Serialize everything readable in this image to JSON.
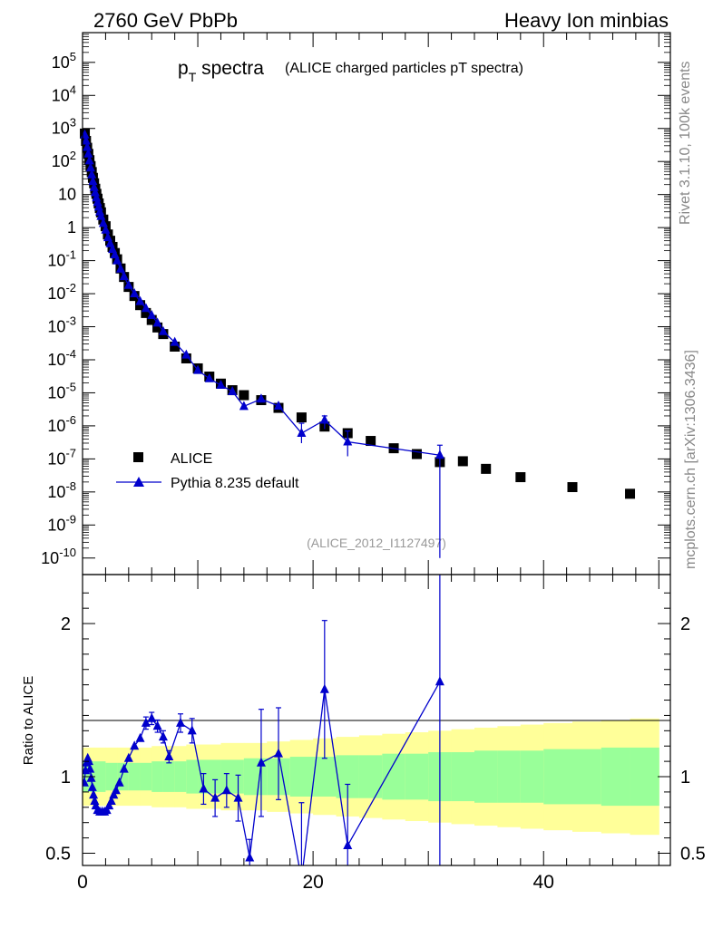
{
  "header": {
    "left": "2760 GeV PbPb",
    "right": "Heavy Ion minbias"
  },
  "title": {
    "main": "p",
    "sub": "T",
    "main2": " spectra",
    "detail": "(ALICE charged particles pT spectra)"
  },
  "side_labels": {
    "rivet": "Rivet 3.1.10,  100k events",
    "mcplots": "mcplots.cern.ch [arXiv:1306.3436]"
  },
  "analysis_id": "(ALICE_2012_I1127497)",
  "colors": {
    "data": "#000000",
    "mc": "#0000cc",
    "band_inner": "#99ff99",
    "band_outer": "#ffff99"
  },
  "chart_data": {
    "type": "scatter",
    "x_range": [
      0,
      51
    ],
    "top": {
      "scale": "log",
      "y_range_log10": [
        -10.5,
        5.9
      ],
      "y_tick_labels": [
        "10^-10",
        "10^-9",
        "10^-8",
        "10^-7",
        "10^-6",
        "10^-5",
        "10^-4",
        "10^-3",
        "10^-2",
        "10^-1",
        "1",
        "10",
        "10^2",
        "10^3",
        "10^4",
        "10^5"
      ],
      "legend": [
        {
          "name": "ALICE",
          "marker": "square"
        },
        {
          "name": "Pythia 8.235 default",
          "marker": "triangle-line"
        }
      ],
      "alice": [
        [
          0.2,
          700
        ],
        [
          0.3,
          420
        ],
        [
          0.4,
          260
        ],
        [
          0.5,
          170
        ],
        [
          0.6,
          110
        ],
        [
          0.7,
          72
        ],
        [
          0.8,
          48
        ],
        [
          0.9,
          32
        ],
        [
          1.0,
          22
        ],
        [
          1.1,
          15
        ],
        [
          1.2,
          10.5
        ],
        [
          1.3,
          7.5
        ],
        [
          1.4,
          5.4
        ],
        [
          1.5,
          3.9
        ],
        [
          1.6,
          2.9
        ],
        [
          1.8,
          1.75
        ],
        [
          2.0,
          1.1
        ],
        [
          2.2,
          0.62
        ],
        [
          2.4,
          0.4
        ],
        [
          2.6,
          0.26
        ],
        [
          2.8,
          0.17
        ],
        [
          3.0,
          0.11
        ],
        [
          3.3,
          0.058
        ],
        [
          3.6,
          0.032
        ],
        [
          4.0,
          0.016
        ],
        [
          4.5,
          0.0085
        ],
        [
          5.0,
          0.0045
        ],
        [
          5.5,
          0.0026
        ],
        [
          6.0,
          0.0016
        ],
        [
          6.5,
          0.00095
        ],
        [
          7.0,
          0.0006
        ],
        [
          8.0,
          0.00025
        ],
        [
          9.0,
          0.00011
        ],
        [
          10.0,
          5.5e-05
        ],
        [
          11.0,
          3.1e-05
        ],
        [
          12.0,
          1.9e-05
        ],
        [
          13.0,
          1.2e-05
        ],
        [
          14.0,
          8.5e-06
        ],
        [
          15.5,
          6e-06
        ],
        [
          17.0,
          3.5e-06
        ],
        [
          19.0,
          1.8e-06
        ],
        [
          21.0,
          9.5e-07
        ],
        [
          23.0,
          6e-07
        ],
        [
          25.0,
          3.5e-07
        ],
        [
          27.0,
          2.1e-07
        ],
        [
          29.0,
          1.4e-07
        ],
        [
          31.0,
          8e-08
        ],
        [
          33.0,
          8.5e-08
        ],
        [
          35.0,
          5e-08
        ],
        [
          38.0,
          2.8e-08
        ],
        [
          42.5,
          1.4e-08
        ],
        [
          47.5,
          8.8e-09
        ]
      ],
      "pythia": [
        [
          0.2,
          640
        ],
        [
          0.3,
          420
        ],
        [
          0.4,
          270
        ],
        [
          0.5,
          170
        ],
        [
          0.6,
          105
        ],
        [
          0.7,
          64
        ],
        [
          0.8,
          40
        ],
        [
          0.9,
          25
        ],
        [
          1.0,
          16.5
        ],
        [
          1.1,
          11.5
        ],
        [
          1.2,
          8
        ],
        [
          1.3,
          5.8
        ],
        [
          1.4,
          4.2
        ],
        [
          1.5,
          3.0
        ],
        [
          1.6,
          2.2
        ],
        [
          1.8,
          1.35
        ],
        [
          2.0,
          0.85
        ],
        [
          2.2,
          0.5
        ],
        [
          2.4,
          0.33
        ],
        [
          2.6,
          0.22
        ],
        [
          2.8,
          0.15
        ],
        [
          3.0,
          0.1
        ],
        [
          3.3,
          0.056
        ],
        [
          3.6,
          0.033
        ],
        [
          4.0,
          0.018
        ],
        [
          4.5,
          0.01
        ],
        [
          5.0,
          0.0058
        ],
        [
          5.5,
          0.0036
        ],
        [
          6.0,
          0.0022
        ],
        [
          6.5,
          0.0013
        ],
        [
          7.0,
          0.00072
        ],
        [
          8.0,
          0.00034
        ],
        [
          9.0,
          0.00014
        ],
        [
          10.0,
          4.8e-05
        ],
        [
          11.0,
          2.7e-05
        ],
        [
          12.0,
          1.7e-05
        ],
        [
          13.0,
          1.1e-05
        ],
        [
          14.0,
          3.9e-06
        ],
        [
          15.5,
          6.5e-06
        ],
        [
          17.0,
          4e-06
        ],
        [
          19.0,
          6e-07
        ],
        [
          21.0,
          1.5e-06
        ],
        [
          23.0,
          3.3e-07
        ],
        [
          31.0,
          1.3e-07
        ]
      ]
    },
    "ratio": {
      "ylabel": "Ratio to ALICE",
      "y_range": [
        0.42,
        2.32
      ],
      "y_tick_labels": [
        "0.5",
        "1",
        "2"
      ],
      "x_tick_labels": [
        "0",
        "20",
        "40"
      ],
      "band_edges": [
        0,
        1,
        2,
        3,
        4,
        5,
        6,
        7,
        8,
        9,
        10,
        12,
        14,
        16,
        18,
        20,
        22,
        24,
        26,
        28,
        30,
        32,
        34,
        36,
        38,
        40,
        42.5,
        45,
        47.5,
        50
      ],
      "band_outer": [
        0.19,
        0.19,
        0.19,
        0.19,
        0.19,
        0.19,
        0.2,
        0.2,
        0.2,
        0.21,
        0.21,
        0.22,
        0.22,
        0.23,
        0.24,
        0.25,
        0.26,
        0.27,
        0.28,
        0.29,
        0.3,
        0.31,
        0.32,
        0.33,
        0.34,
        0.35,
        0.36,
        0.37,
        0.38
      ],
      "band_inner": [
        0.1,
        0.1,
        0.09,
        0.09,
        0.09,
        0.09,
        0.1,
        0.1,
        0.1,
        0.11,
        0.11,
        0.11,
        0.12,
        0.12,
        0.13,
        0.13,
        0.14,
        0.14,
        0.15,
        0.15,
        0.16,
        0.16,
        0.17,
        0.17,
        0.17,
        0.18,
        0.18,
        0.19,
        0.19
      ],
      "pythia": [
        [
          0.15,
          0.96
        ],
        [
          0.25,
          1.04
        ],
        [
          0.35,
          1.09
        ],
        [
          0.45,
          1.12
        ],
        [
          0.55,
          1.1
        ],
        [
          0.65,
          1.05
        ],
        [
          0.75,
          0.99
        ],
        [
          0.85,
          0.93
        ],
        [
          0.95,
          0.88
        ],
        [
          1.05,
          0.84
        ],
        [
          1.15,
          0.81
        ],
        [
          1.3,
          0.78
        ],
        [
          1.5,
          0.77
        ],
        [
          1.7,
          0.77
        ],
        [
          1.9,
          0.77
        ],
        [
          2.1,
          0.78
        ],
        [
          2.3,
          0.81
        ],
        [
          2.5,
          0.84
        ],
        [
          2.7,
          0.88
        ],
        [
          2.9,
          0.91
        ],
        [
          3.2,
          0.96
        ],
        [
          3.6,
          1.05
        ],
        [
          4.0,
          1.12
        ],
        [
          4.5,
          1.2
        ],
        [
          5.0,
          1.25
        ],
        [
          5.5,
          1.35
        ],
        [
          6.0,
          1.38
        ],
        [
          6.5,
          1.33
        ],
        [
          7.0,
          1.26
        ],
        [
          7.5,
          1.13
        ],
        [
          8.5,
          1.35
        ],
        [
          9.5,
          1.3
        ],
        [
          10.5,
          0.92
        ],
        [
          11.5,
          0.86
        ],
        [
          12.5,
          0.91
        ],
        [
          13.5,
          0.86
        ],
        [
          14.5,
          0.47
        ],
        [
          15.5,
          1.09
        ],
        [
          17.0,
          1.15
        ],
        [
          19.0,
          0.33
        ],
        [
          21.0,
          1.57
        ],
        [
          23.0,
          0.55
        ],
        [
          31.0,
          1.62
        ]
      ],
      "pythia_err": [
        0,
        0,
        0,
        0,
        0,
        0,
        0,
        0,
        0,
        0,
        0,
        0,
        0,
        0,
        0,
        0,
        0,
        0,
        0,
        0,
        0,
        0,
        0,
        0,
        0,
        0.04,
        0.04,
        0.04,
        0.04,
        0.04,
        0.06,
        0.08,
        0.1,
        0.12,
        0.11,
        0.15,
        0.12,
        0.35,
        0.3,
        0.5,
        0.45,
        0.4,
        1.5
      ]
    }
  }
}
